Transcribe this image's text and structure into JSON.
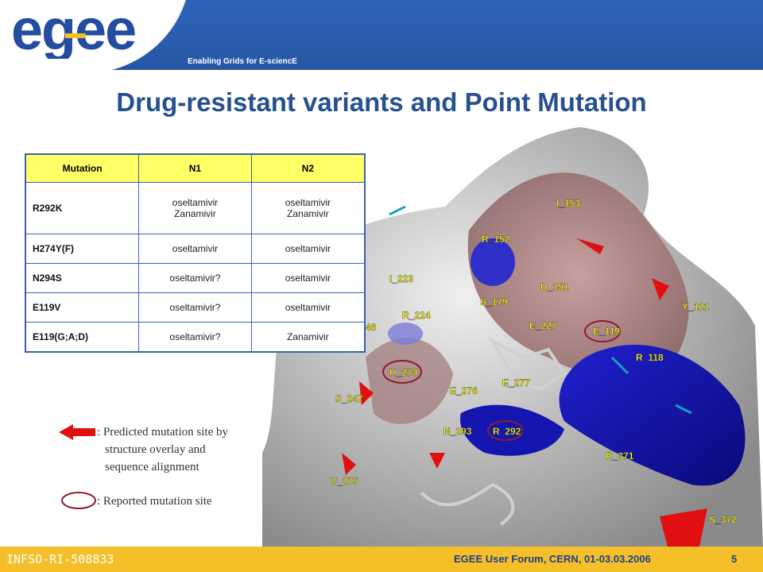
{
  "header": {
    "logo_text": "egee",
    "tagline": "Enabling Grids for E-sciencE"
  },
  "title": "Drug-resistant variants and Point Mutation",
  "table": {
    "headers": [
      "Mutation",
      "N1",
      "N2"
    ],
    "rows": [
      {
        "mutation": "R292K",
        "n1": [
          "oseltamivir",
          "Zanamivir"
        ],
        "n2": [
          "oseltamivir",
          "Zanamivir"
        ]
      },
      {
        "mutation": "H274Y(F)",
        "n1": [
          "oseltamivir"
        ],
        "n2": [
          "oseltamivir"
        ]
      },
      {
        "mutation": "N294S",
        "n1": [
          "oseltamivir?"
        ],
        "n2": [
          "oseltamivir"
        ]
      },
      {
        "mutation": "E119V",
        "n1": [
          "oseltamivir?"
        ],
        "n2": [
          "oseltamivir"
        ]
      },
      {
        "mutation": "E119(G;A;D)",
        "n1": [
          "oseltamivir?"
        ],
        "n2": [
          "Zanamivir"
        ]
      }
    ]
  },
  "residue_labels": [
    "I_153",
    "R_152",
    "I_223",
    "D_151",
    "S_179",
    "Y_121",
    "R_224",
    "46",
    "E_227",
    "E_119",
    "R_118",
    "H_274",
    "E_277",
    "E_276",
    "S_247",
    "N_293",
    "R_292",
    "R_371",
    "V_275",
    "S_372"
  ],
  "legend": {
    "arrow_text_1": ": Predicted mutation site by",
    "arrow_text_2": "structure overlay and",
    "arrow_text_3": "sequence alignment",
    "circle_text": ": Reported mutation site"
  },
  "footer": {
    "left": "INFSO-RI-508833",
    "center": "EGEE User Forum, CERN, 01-03.03.2006",
    "page": "5"
  },
  "colors": {
    "header_blue": "#2a5dae",
    "title_blue": "#26508f",
    "table_header_yellow": "#ffff66",
    "footer_gold": "#f5bf2a",
    "arrow_red": "#e01010"
  }
}
